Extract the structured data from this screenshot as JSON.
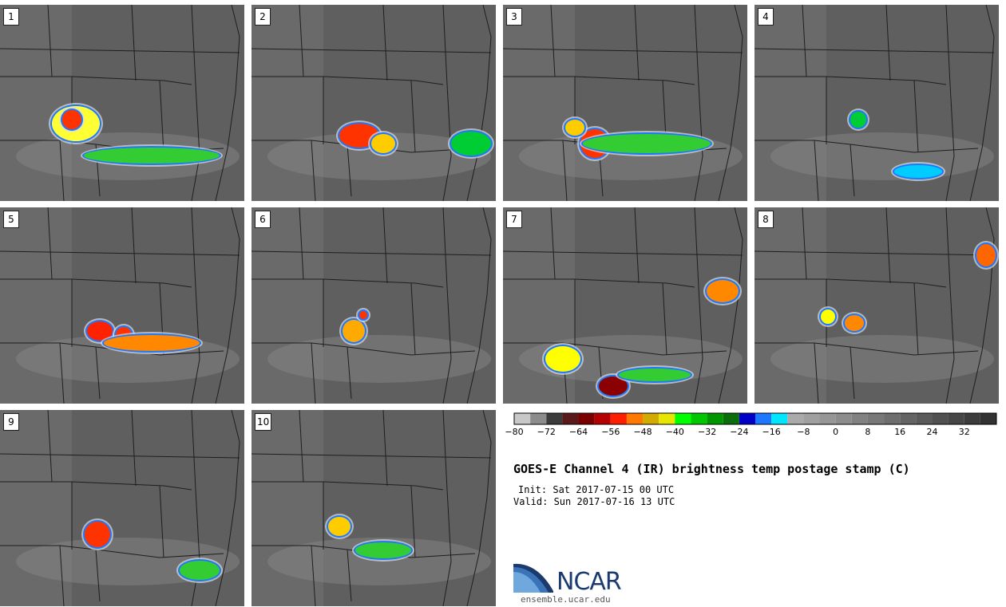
{
  "title": "GOES-E Channel 4 (IR) brightness temp postage stamp (C)",
  "init": "Init: Sat 2017-07-15 00 UTC",
  "valid": "Valid: Sun 2017-07-16 13 UTC",
  "logo": {
    "name": "NCAR",
    "url_text": "ensemble.ucar.edu"
  },
  "panels": [
    {
      "label": "1"
    },
    {
      "label": "2"
    },
    {
      "label": "3"
    },
    {
      "label": "4"
    },
    {
      "label": "5"
    },
    {
      "label": "6"
    },
    {
      "label": "7"
    },
    {
      "label": "8"
    },
    {
      "label": "9"
    },
    {
      "label": "10"
    }
  ],
  "colorbar": {
    "min": -80,
    "max": 40,
    "step": 4,
    "tick_labels": [
      "−80",
      "−72",
      "−64",
      "−56",
      "−48",
      "−40",
      "−32",
      "−24",
      "−16",
      "−8",
      "0",
      "8",
      "16",
      "24",
      "32"
    ],
    "tick_values": [
      -80,
      -72,
      -64,
      -56,
      -48,
      -40,
      -32,
      -24,
      -16,
      -8,
      0,
      8,
      16,
      24,
      32
    ],
    "colors": [
      "#c8c8c8",
      "#8c8c8c",
      "#3c3c3c",
      "#5a1a1a",
      "#7a0000",
      "#b40000",
      "#ff1e00",
      "#ff7800",
      "#d2aa00",
      "#e6e600",
      "#00ff00",
      "#00c800",
      "#009600",
      "#0a6e0a",
      "#0000c8",
      "#1e78ff",
      "#00e6ff",
      "#aaaaaa",
      "#a0a0a0",
      "#969696",
      "#8c8c8c",
      "#828282",
      "#787878",
      "#6e6e6e",
      "#646464",
      "#5a5a5a",
      "#505050",
      "#464646",
      "#3c3c3c",
      "#323232"
    ]
  }
}
